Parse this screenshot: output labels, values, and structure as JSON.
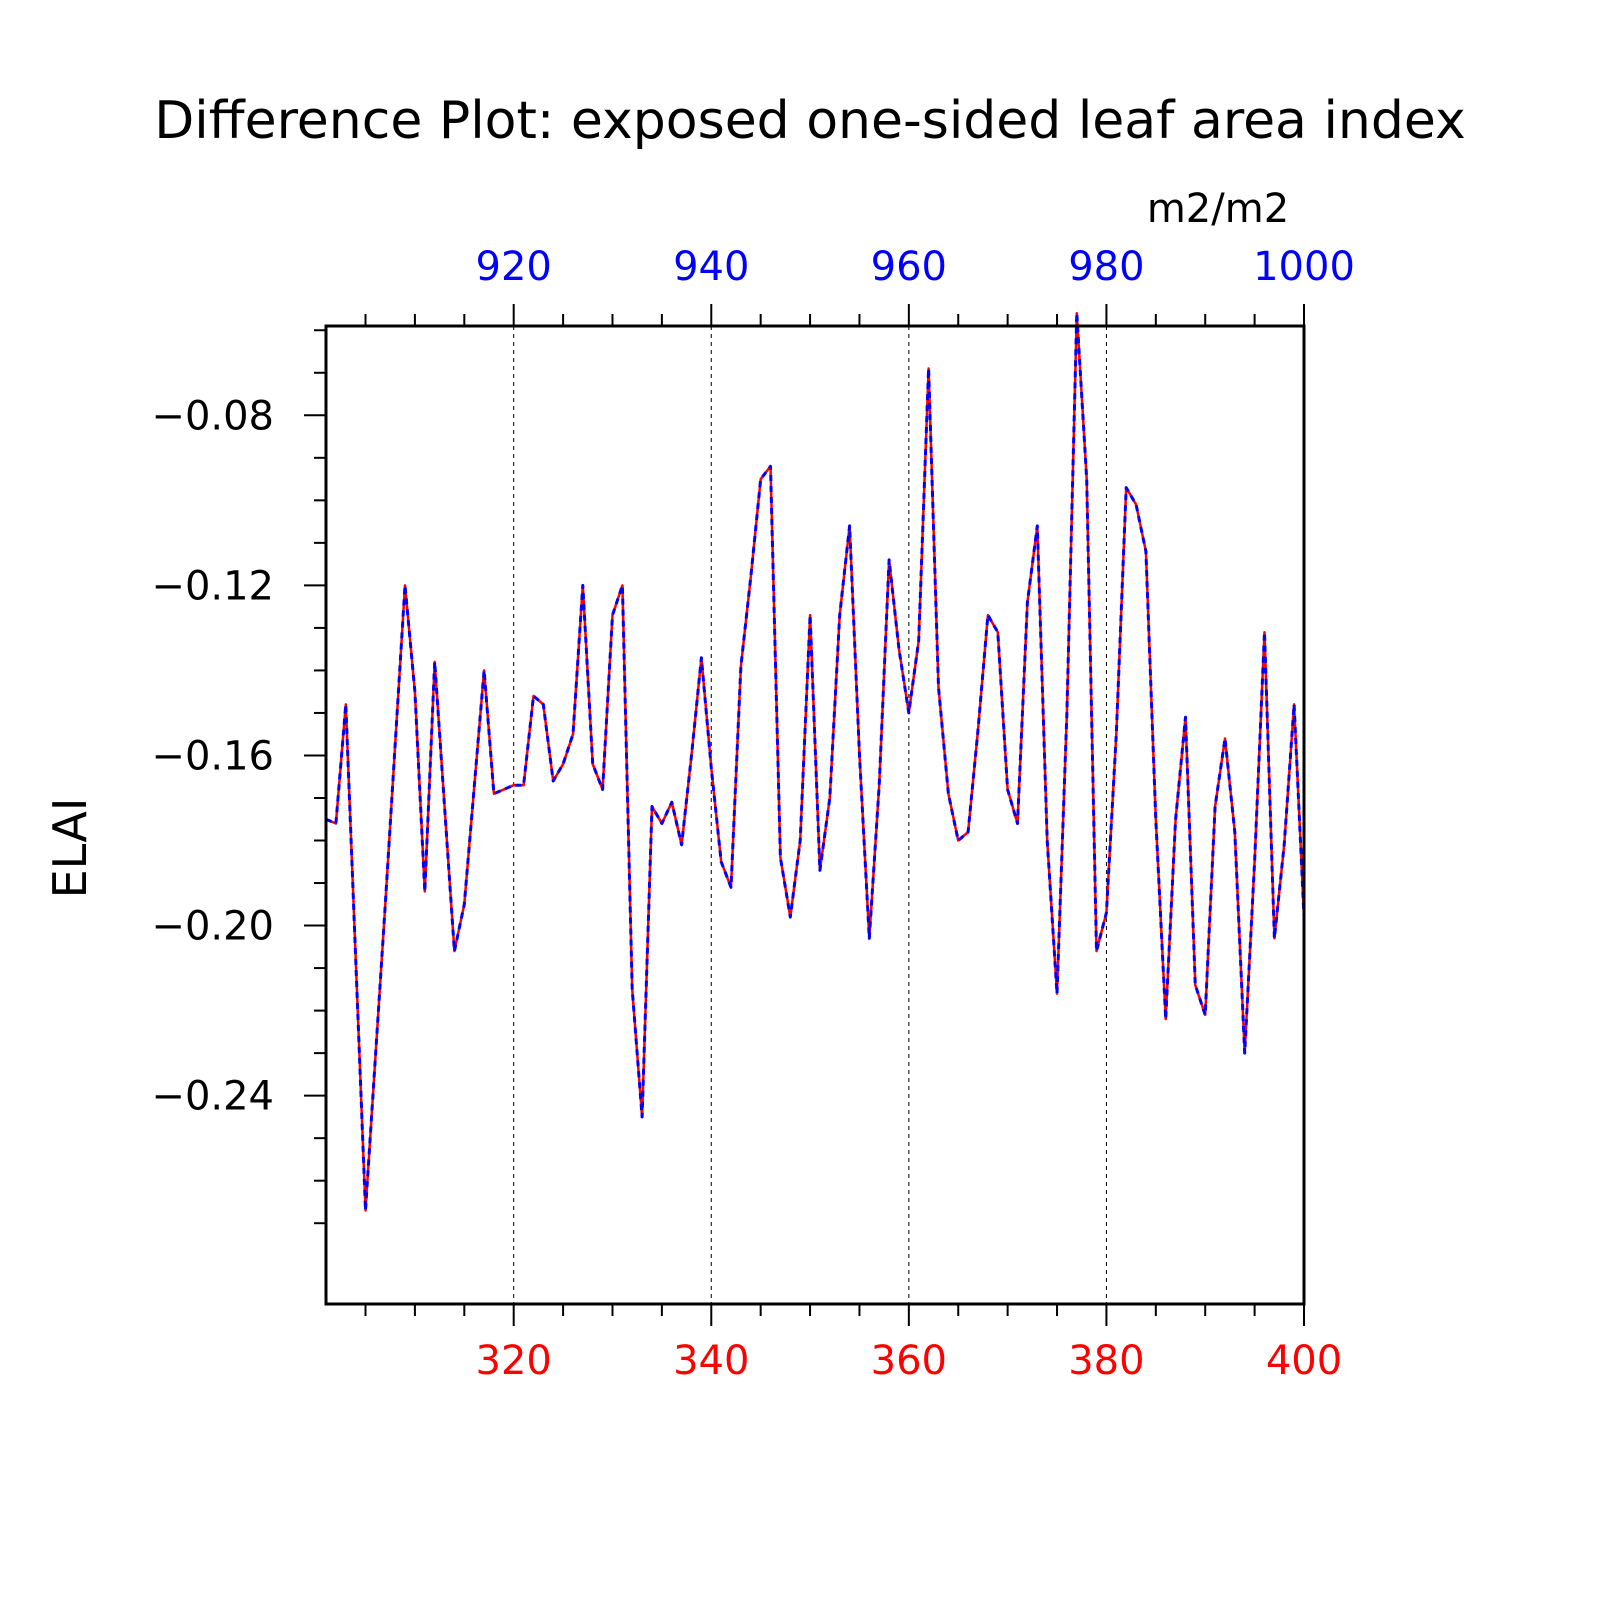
{
  "chart_data": {
    "type": "line",
    "title": "Difference Plot: exposed one-sided leaf area index",
    "units": "m2/m2",
    "ylabel": "ELAI",
    "bottom_axis": {
      "color": "#ff0000",
      "range": [
        301,
        400
      ],
      "ticks": [
        "320",
        "340",
        "360",
        "380",
        "400"
      ]
    },
    "top_axis": {
      "color": "#0000ff",
      "range": [
        901,
        1000
      ],
      "ticks": [
        "920",
        "940",
        "960",
        "980",
        "1000"
      ]
    },
    "y_axis": {
      "range": [
        -0.289,
        -0.059
      ],
      "ticks": [
        "-0.08",
        "-0.12",
        "-0.16",
        "-0.20",
        "-0.24"
      ]
    },
    "grid": "vertical dashed at major x ticks",
    "series": [
      {
        "color": "#ff0000",
        "style": "solid",
        "x_axis": "bottom",
        "x": [
          301,
          302,
          303,
          305,
          307,
          309,
          310,
          311,
          312,
          314,
          315,
          317,
          318,
          320,
          321,
          322,
          323,
          324,
          325,
          326,
          327,
          328,
          329,
          330,
          331,
          332,
          333,
          334,
          335,
          336,
          337,
          338,
          339,
          340,
          341,
          342,
          343,
          344,
          345,
          346,
          347,
          348,
          349,
          350,
          351,
          352,
          353,
          354,
          355,
          356,
          357,
          358,
          359,
          360,
          361,
          362,
          363,
          364,
          365,
          366,
          367,
          368,
          369,
          370,
          371,
          372,
          373,
          374,
          375,
          376,
          377,
          378,
          379,
          380,
          381,
          382,
          383,
          384,
          385,
          386,
          387,
          388,
          389,
          390,
          391,
          392,
          393,
          394,
          395,
          396,
          397,
          398,
          399,
          400
        ],
        "values": [
          -0.175,
          -0.176,
          -0.148,
          -0.267,
          -0.195,
          -0.12,
          -0.145,
          -0.192,
          -0.138,
          -0.206,
          -0.195,
          -0.14,
          -0.169,
          -0.167,
          -0.167,
          -0.146,
          -0.148,
          -0.166,
          -0.162,
          -0.155,
          -0.12,
          -0.162,
          -0.168,
          -0.127,
          -0.12,
          -0.215,
          -0.245,
          -0.172,
          -0.176,
          -0.171,
          -0.181,
          -0.16,
          -0.137,
          -0.163,
          -0.185,
          -0.191,
          -0.139,
          -0.118,
          -0.095,
          -0.092,
          -0.184,
          -0.198,
          -0.18,
          -0.127,
          -0.187,
          -0.17,
          -0.127,
          -0.106,
          -0.16,
          -0.203,
          -0.167,
          -0.114,
          -0.135,
          -0.15,
          -0.133,
          -0.069,
          -0.144,
          -0.169,
          -0.18,
          -0.178,
          -0.154,
          -0.127,
          -0.131,
          -0.168,
          -0.176,
          -0.124,
          -0.106,
          -0.18,
          -0.216,
          -0.15,
          -0.056,
          -0.095,
          -0.206,
          -0.197,
          -0.155,
          -0.097,
          -0.101,
          -0.112,
          -0.175,
          -0.222,
          -0.175,
          -0.151,
          -0.214,
          -0.221,
          -0.172,
          -0.156,
          -0.178,
          -0.23,
          -0.185,
          -0.131,
          -0.203,
          -0.181,
          -0.148,
          -0.198
        ]
      },
      {
        "color": "#0000ff",
        "style": "dashed",
        "x_axis": "top",
        "x": [
          901,
          902,
          903,
          905,
          907,
          909,
          910,
          911,
          912,
          914,
          915,
          917,
          918,
          920,
          921,
          922,
          923,
          924,
          925,
          926,
          927,
          928,
          929,
          930,
          931,
          932,
          933,
          934,
          935,
          936,
          937,
          938,
          939,
          940,
          941,
          942,
          943,
          944,
          945,
          946,
          947,
          948,
          949,
          950,
          951,
          952,
          953,
          954,
          955,
          956,
          957,
          958,
          959,
          960,
          961,
          962,
          963,
          964,
          965,
          966,
          967,
          968,
          969,
          970,
          971,
          972,
          973,
          974,
          975,
          976,
          977,
          978,
          979,
          980,
          981,
          982,
          983,
          984,
          985,
          986,
          987,
          988,
          989,
          990,
          991,
          992,
          993,
          994,
          995,
          996,
          997,
          998,
          999,
          1000
        ],
        "values": [
          -0.175,
          -0.176,
          -0.148,
          -0.267,
          -0.195,
          -0.12,
          -0.145,
          -0.192,
          -0.138,
          -0.206,
          -0.195,
          -0.14,
          -0.169,
          -0.167,
          -0.167,
          -0.146,
          -0.148,
          -0.166,
          -0.162,
          -0.155,
          -0.12,
          -0.162,
          -0.168,
          -0.127,
          -0.12,
          -0.215,
          -0.245,
          -0.172,
          -0.176,
          -0.171,
          -0.181,
          -0.16,
          -0.137,
          -0.163,
          -0.185,
          -0.191,
          -0.139,
          -0.118,
          -0.095,
          -0.092,
          -0.184,
          -0.198,
          -0.18,
          -0.127,
          -0.187,
          -0.17,
          -0.127,
          -0.106,
          -0.16,
          -0.203,
          -0.167,
          -0.114,
          -0.135,
          -0.15,
          -0.133,
          -0.069,
          -0.144,
          -0.169,
          -0.18,
          -0.178,
          -0.154,
          -0.127,
          -0.131,
          -0.168,
          -0.176,
          -0.124,
          -0.106,
          -0.18,
          -0.216,
          -0.15,
          -0.056,
          -0.095,
          -0.206,
          -0.197,
          -0.155,
          -0.097,
          -0.101,
          -0.112,
          -0.175,
          -0.222,
          -0.175,
          -0.151,
          -0.214,
          -0.221,
          -0.172,
          -0.156,
          -0.178,
          -0.23,
          -0.185,
          -0.131,
          -0.203,
          -0.181,
          -0.148,
          -0.198
        ]
      }
    ]
  }
}
